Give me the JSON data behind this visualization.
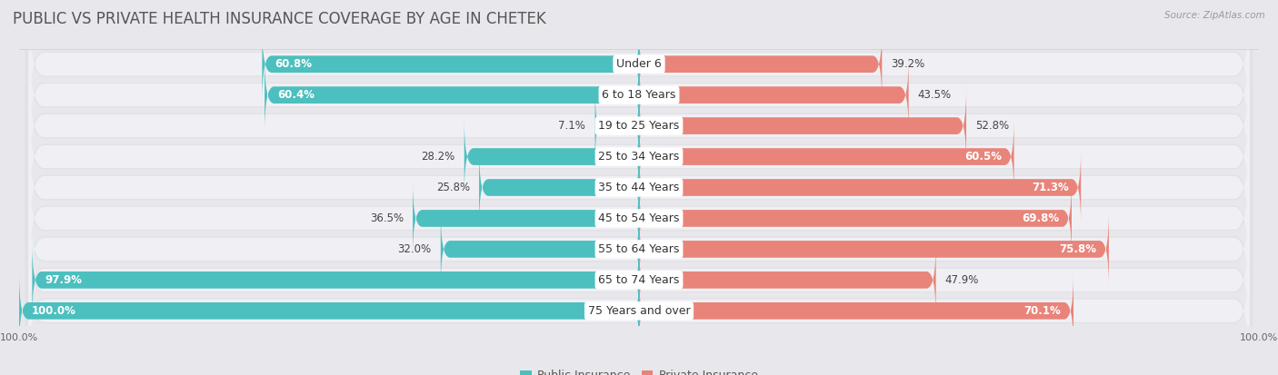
{
  "title": "PUBLIC VS PRIVATE HEALTH INSURANCE COVERAGE BY AGE IN CHETEK",
  "source": "Source: ZipAtlas.com",
  "categories": [
    "Under 6",
    "6 to 18 Years",
    "19 to 25 Years",
    "25 to 34 Years",
    "35 to 44 Years",
    "45 to 54 Years",
    "55 to 64 Years",
    "65 to 74 Years",
    "75 Years and over"
  ],
  "public_values": [
    60.8,
    60.4,
    7.1,
    28.2,
    25.8,
    36.5,
    32.0,
    97.9,
    100.0
  ],
  "private_values": [
    39.2,
    43.5,
    52.8,
    60.5,
    71.3,
    69.8,
    75.8,
    47.9,
    70.1
  ],
  "public_color": "#4cbfbf",
  "private_color": "#e8847a",
  "row_bg_color": "#e2e2e6",
  "row_inner_color": "#f0f0f4",
  "background_color": "#e8e8ec",
  "title_fontsize": 12,
  "label_fontsize": 9,
  "value_fontsize": 8.5,
  "legend_fontsize": 9,
  "axis_label_fontsize": 8
}
